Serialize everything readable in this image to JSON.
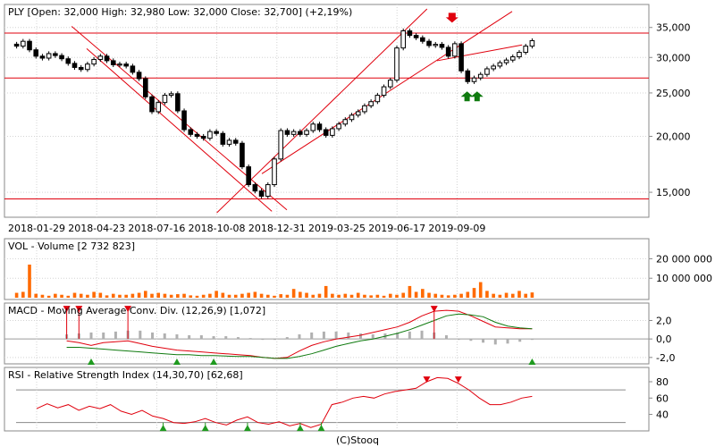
{
  "footer": "(C)Stooq",
  "chart_data": [
    {
      "type": "candlestick",
      "title": "PLY [Open: 32,000  High: 32,980  Low: 32,000  Close: 32,700] (+2,19%)",
      "x_ticks": [
        "2018-01-29",
        "2018-04-23",
        "2018-07-16",
        "2018-10-08",
        "2018-12-31",
        "2019-03-25",
        "2019-06-17",
        "2019-09-09"
      ],
      "y_ticks": [
        {
          "value": 35000,
          "label": "35,000"
        },
        {
          "value": 30000,
          "label": "30,000"
        },
        {
          "value": 25000,
          "label": "25,000"
        },
        {
          "value": 20000,
          "label": "20,000"
        },
        {
          "value": 15000,
          "label": "15,000"
        }
      ],
      "y_scale": "log",
      "ylim": [
        13500,
        38500
      ],
      "grid": true,
      "colors": {
        "line": "#e0000d",
        "up": "#ffffff",
        "down": "#000000",
        "green_marker": "#0f7a0f",
        "red_marker": "#e0000d"
      },
      "closes": [
        31800,
        32600,
        31200,
        30200,
        29900,
        30600,
        30300,
        29800,
        29100,
        28500,
        28200,
        29000,
        29700,
        30200,
        29500,
        28900,
        29000,
        28700,
        27800,
        26900,
        24500,
        22700,
        23800,
        24700,
        24900,
        22800,
        20700,
        20200,
        20000,
        19800,
        20500,
        20300,
        19200,
        19600,
        19300,
        17100,
        15600,
        15100,
        14700,
        15600,
        17800,
        20600,
        20200,
        20500,
        20200,
        20600,
        21300,
        20700,
        20100,
        20800,
        21300,
        21800,
        22300,
        22700,
        23400,
        23900,
        24700,
        25800,
        26700,
        31500,
        34400,
        33600,
        33200,
        32600,
        31900,
        32100,
        31600,
        30200,
        32200,
        28000,
        26500,
        27000,
        27500,
        28300,
        28700,
        29200,
        29600,
        30100,
        30800,
        31800,
        32700
      ],
      "red_markers": [
        {
          "x": "2019-09-02",
          "value": 36200
        }
      ],
      "green_markers": [
        {
          "x": "2019-09-23",
          "value": 25200
        },
        {
          "x": "2019-10-07",
          "value": 25200
        }
      ],
      "trend_lines": [
        {
          "start": {
            "x": "2018-03-19",
            "value": 35200
          },
          "end": {
            "x": "2019-01-14",
            "value": 13700
          }
        },
        {
          "start": {
            "x": "2018-04-09",
            "value": 31400
          },
          "end": {
            "x": "2018-12-24",
            "value": 13600
          }
        },
        {
          "start": {
            "x": "2018-10-08",
            "value": 13500
          },
          "end": {
            "x": "2019-07-29",
            "value": 38500
          }
        },
        {
          "start": {
            "x": "2018-12-10",
            "value": 16500
          },
          "end": {
            "x": "2019-11-25",
            "value": 38000
          }
        },
        {
          "start": {
            "x": "2019-08-12",
            "value": 29500
          },
          "end": {
            "x": "2019-12-09",
            "value": 32000
          }
        }
      ],
      "horizontal_lines": [
        34000,
        27000,
        14500
      ]
    },
    {
      "type": "bar",
      "title": "VOL - Volume [2 732 823]",
      "y_ticks": [
        {
          "value": 20000000,
          "label": "20 000 000"
        },
        {
          "value": 10000000,
          "label": "10 000 000"
        }
      ],
      "ylim": [
        0,
        28000000
      ],
      "bar_color": "#ff6a00",
      "values": [
        2500000,
        3000000,
        17000000,
        2000000,
        1500000,
        1000000,
        2000000,
        1500000,
        1000000,
        2500000,
        2000000,
        1500000,
        3000000,
        2500000,
        1200000,
        2000000,
        1500000,
        1500000,
        2000000,
        2500000,
        3500000,
        2000000,
        2500000,
        2000000,
        1500000,
        1800000,
        2000000,
        1200000,
        1000000,
        1500000,
        2000000,
        3500000,
        2500000,
        1500000,
        1500000,
        2000000,
        2500000,
        3000000,
        2000000,
        1500000,
        1000000,
        1800000,
        1500000,
        4500000,
        3000000,
        2500000,
        1500000,
        2000000,
        6000000,
        2000000,
        1500000,
        2000000,
        1500000,
        2500000,
        1500000,
        1200000,
        1500000,
        1000000,
        2000000,
        1500000,
        2500000,
        6000000,
        3000000,
        4500000,
        2500000,
        2000000,
        1500000,
        1200000,
        1500000,
        2000000,
        3000000,
        5000000,
        8000000,
        3500000,
        2000000,
        1500000,
        2500000,
        2000000,
        3500000,
        2000000,
        2700000
      ]
    },
    {
      "type": "line",
      "title": "MACD - Moving Average Conv. Div. (12,26,9) [1,072]",
      "y_ticks": [
        {
          "value": 2.0,
          "label": "2,0"
        },
        {
          "value": 0.0,
          "label": "0,0"
        },
        {
          "value": -2.0,
          "label": "-2,0"
        }
      ],
      "ylim": [
        -2.5,
        3.4
      ],
      "series": [
        {
          "color": "#e0000d",
          "values": [
            -0.2,
            -0.4,
            -0.7,
            -0.4,
            -0.3,
            -0.2,
            -0.5,
            -0.8,
            -1.0,
            -1.2,
            -1.3,
            -1.4,
            -1.5,
            -1.6,
            -1.7,
            -1.8,
            -2.0,
            -2.1,
            -2.0,
            -1.3,
            -0.7,
            -0.3,
            0.0,
            0.2,
            0.4,
            0.7,
            1.0,
            1.3,
            1.8,
            2.5,
            3.0,
            3.1,
            3.0,
            2.5,
            1.9,
            1.3,
            1.2,
            1.1,
            1.1
          ]
        },
        {
          "color": "#0f7a0f",
          "values": [
            -0.9,
            -0.9,
            -1.0,
            -1.1,
            -1.2,
            -1.3,
            -1.4,
            -1.5,
            -1.6,
            -1.7,
            -1.7,
            -1.8,
            -1.8,
            -1.85,
            -1.9,
            -1.9,
            -2.0,
            -2.1,
            -2.1,
            -1.9,
            -1.6,
            -1.2,
            -0.8,
            -0.5,
            -0.2,
            0.0,
            0.3,
            0.6,
            1.0,
            1.5,
            2.0,
            2.5,
            2.7,
            2.6,
            2.4,
            1.8,
            1.4,
            1.2,
            1.1
          ]
        }
      ],
      "histogram": [
        0.5,
        0.6,
        0.7,
        0.7,
        0.8,
        0.9,
        0.9,
        0.7,
        0.6,
        0.5,
        0.4,
        0.4,
        0.3,
        0.3,
        0.2,
        0.1,
        0.0,
        0.0,
        0.2,
        0.5,
        0.7,
        0.8,
        0.8,
        0.7,
        0.6,
        0.5,
        0.6,
        0.7,
        0.8,
        0.9,
        0.7,
        0.4,
        0.0,
        -0.2,
        -0.4,
        -0.6,
        -0.5,
        -0.3,
        -0.1
      ],
      "red_markers": [
        {
          "index": 0,
          "value": 3.2
        },
        {
          "index": 1,
          "value": 3.2
        },
        {
          "index": 5,
          "value": 3.2
        },
        {
          "index": 30,
          "value": 3.2
        }
      ],
      "green_markers": [
        {
          "index": 2,
          "value": -2.4
        },
        {
          "index": 9,
          "value": -2.4
        },
        {
          "index": 12,
          "value": -2.4
        },
        {
          "index": 38,
          "value": -2.4
        }
      ]
    },
    {
      "type": "line",
      "title": "RSI - Relative Strength Index (14,30,70) [62,68]",
      "y_ticks": [
        {
          "value": 80,
          "label": "80"
        },
        {
          "value": 60,
          "label": "60"
        },
        {
          "value": 40,
          "label": "40"
        }
      ],
      "reference_lines": [
        70,
        30
      ],
      "ylim": [
        22,
        92
      ],
      "series": [
        {
          "color": "#e0000d",
          "values": [
            47,
            53,
            48,
            52,
            45,
            50,
            47,
            52,
            44,
            40,
            45,
            38,
            35,
            30,
            29,
            31,
            35,
            30,
            27,
            33,
            37,
            30,
            28,
            31,
            26,
            29,
            24,
            28,
            52,
            55,
            60,
            62,
            60,
            65,
            68,
            70,
            72,
            80,
            85,
            84,
            78,
            70,
            60,
            52,
            52,
            55,
            60,
            62
          ]
        }
      ],
      "red_markers": [
        {
          "index": 37,
          "value": 82
        },
        {
          "index": 40,
          "value": 82
        }
      ],
      "green_markers": [
        {
          "index": 12,
          "value": 24
        },
        {
          "index": 16,
          "value": 24
        },
        {
          "index": 20,
          "value": 24
        },
        {
          "index": 25,
          "value": 24
        },
        {
          "index": 27,
          "value": 24
        }
      ]
    }
  ]
}
